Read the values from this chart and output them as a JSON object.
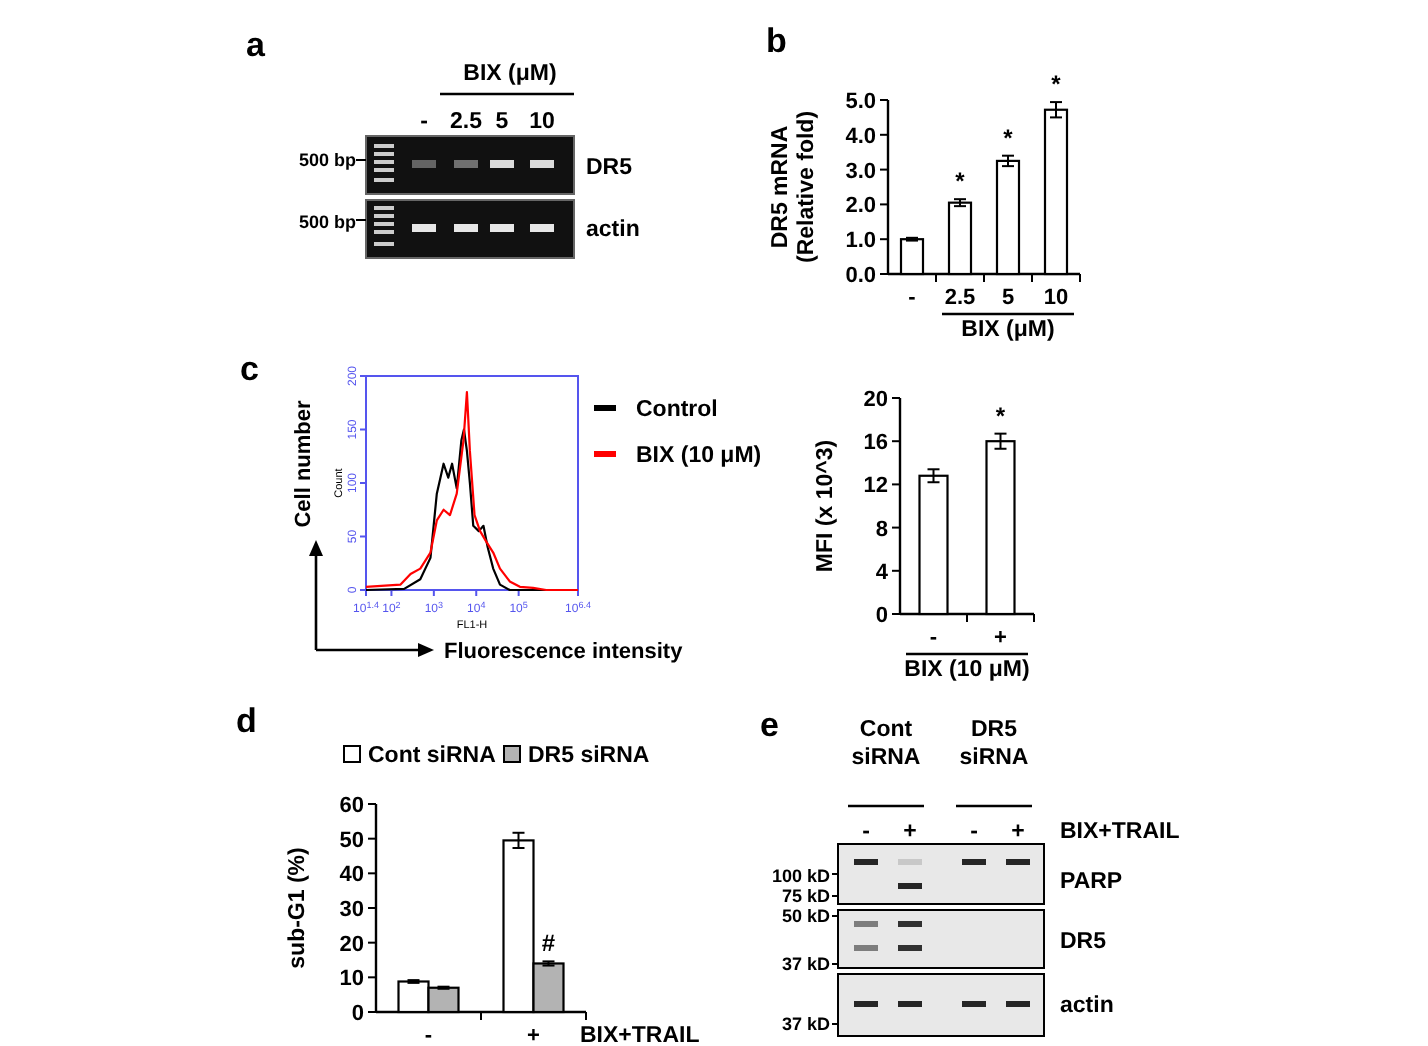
{
  "chart_data": [
    {
      "type": "other",
      "title": "a",
      "annotations": [
        "BIX (μM)",
        "-",
        "2.5",
        "5",
        "10",
        "500 bp",
        "500 bp",
        "DR5",
        "actin"
      ]
    },
    {
      "type": "bar",
      "title": "b",
      "categories": [
        "-",
        "2.5",
        "5",
        "10"
      ],
      "values": [
        1.0,
        2.05,
        3.25,
        4.72
      ],
      "errors": [
        0.04,
        0.1,
        0.15,
        0.22
      ],
      "color": "#ffffff",
      "ylim": [
        0,
        5
      ],
      "yticks": [
        {
          "value": 0,
          "label": "0.0"
        },
        {
          "value": 1,
          "label": "1.0"
        },
        {
          "value": 2,
          "label": "2.0"
        },
        {
          "value": 3,
          "label": "3.0"
        },
        {
          "value": 4,
          "label": "4.0"
        },
        {
          "value": 5,
          "label": "5.0"
        }
      ],
      "ylabel": "DR5 mRNA\n(Relative fold)",
      "xlabel": "BIX (μM)",
      "legend": false,
      "annotations": [
        {
          "text": "*",
          "x": "2.5",
          "y": 2.15
        },
        {
          "text": "*",
          "x": "5",
          "y": 3.4
        },
        {
          "text": "*",
          "x": "10",
          "y": 4.94
        }
      ]
    },
    {
      "type": "line",
      "title": "c",
      "log": "x",
      "xlim": [
        25.12,
        2511886
      ],
      "xticks": [
        {
          "value": 25.12,
          "label": "10$^{1.4}$"
        },
        {
          "value": 100,
          "label": "10$^{2}$"
        },
        {
          "value": 1000,
          "label": "10$^{3}$"
        },
        {
          "value": 10000,
          "label": "10$^{4}$"
        },
        {
          "value": 100000,
          "label": "10$^{5}$"
        },
        {
          "value": 2511886,
          "label": "10$^{6.4}$"
        }
      ],
      "ylim": [
        0,
        200
      ],
      "yticks": [
        0,
        50,
        100,
        150,
        200
      ],
      "xlabel": "FL1-H",
      "ylabel": "Count",
      "legend": "right",
      "grid": false,
      "marker": "none",
      "line_style": "solid",
      "annotations": [
        "Cell number",
        "Fluorescence intensity"
      ],
      "series": [
        {
          "name": "Control",
          "color": "#000000",
          "x": [
            25.12,
            200,
            479,
            832,
            1175,
            1698,
            2188,
            2692,
            3467,
            4467,
            5129,
            6026,
            7079,
            8511,
            11482,
            14791,
            18621,
            25119,
            36308,
            61660,
            2511886
          ],
          "values": [
            0,
            1,
            10,
            30,
            90,
            118,
            105,
            118,
            95,
            140,
            150,
            130,
            100,
            60,
            55,
            60,
            40,
            20,
            5,
            0,
            0
          ]
        },
        {
          "name": "BIX (10 μM)",
          "color": "#ff0000",
          "x": [
            25.12,
            162,
            282,
            479,
            832,
            1175,
            1698,
            2399,
            3467,
            5012,
            6026,
            7079,
            9120,
            12303,
            17378,
            25119,
            36308,
            61660,
            107152,
            218776,
            446684,
            2511886
          ],
          "values": [
            3,
            5,
            15,
            20,
            35,
            65,
            75,
            70,
            90,
            140,
            185,
            130,
            70,
            55,
            45,
            35,
            20,
            8,
            3,
            2,
            0,
            0
          ]
        }
      ]
    },
    {
      "type": "bar",
      "categories": [
        "-",
        "+"
      ],
      "values": [
        12.8,
        16.0
      ],
      "errors": [
        0.6,
        0.7
      ],
      "color": "#ffffff",
      "ylim": [
        0,
        20
      ],
      "yticks": [
        0,
        4,
        8,
        12,
        16,
        20
      ],
      "ylabel": "MFI (x 10^3)",
      "xlabel": "BIX (10 μM)",
      "legend": false,
      "annotations": [
        {
          "text": "*",
          "x": "+",
          "y": 16.7
        }
      ]
    },
    {
      "type": "bar",
      "title": "d",
      "categories": [
        "-",
        "+"
      ],
      "ylim": [
        0,
        60
      ],
      "yticks": [
        0,
        10,
        20,
        30,
        40,
        50,
        60
      ],
      "ylabel": "sub-G1 (%)",
      "xlabel": "BIX+TRAIL",
      "legend": "top",
      "series": [
        {
          "name": "Cont siRNA",
          "color": "#ffffff",
          "values": [
            8.8,
            49.5
          ],
          "errors": [
            0.4,
            2.2
          ]
        },
        {
          "name": "DR5 siRNA",
          "color": "#b3b3b3",
          "values": [
            7.0,
            14.0
          ],
          "errors": [
            0.3,
            0.6
          ]
        }
      ],
      "annotations": [
        {
          "text": "#",
          "x": "+",
          "y": 14.6
        }
      ]
    },
    {
      "type": "other",
      "title": "e",
      "annotations": [
        "Cont siRNA",
        "DR5 siRNA",
        "-",
        "+",
        "-",
        "+",
        "BIX+TRAIL",
        "PARP",
        "DR5",
        "actin",
        "100 kD",
        "75 kD",
        "50 kD",
        "37 kD",
        "37 kD"
      ]
    }
  ]
}
